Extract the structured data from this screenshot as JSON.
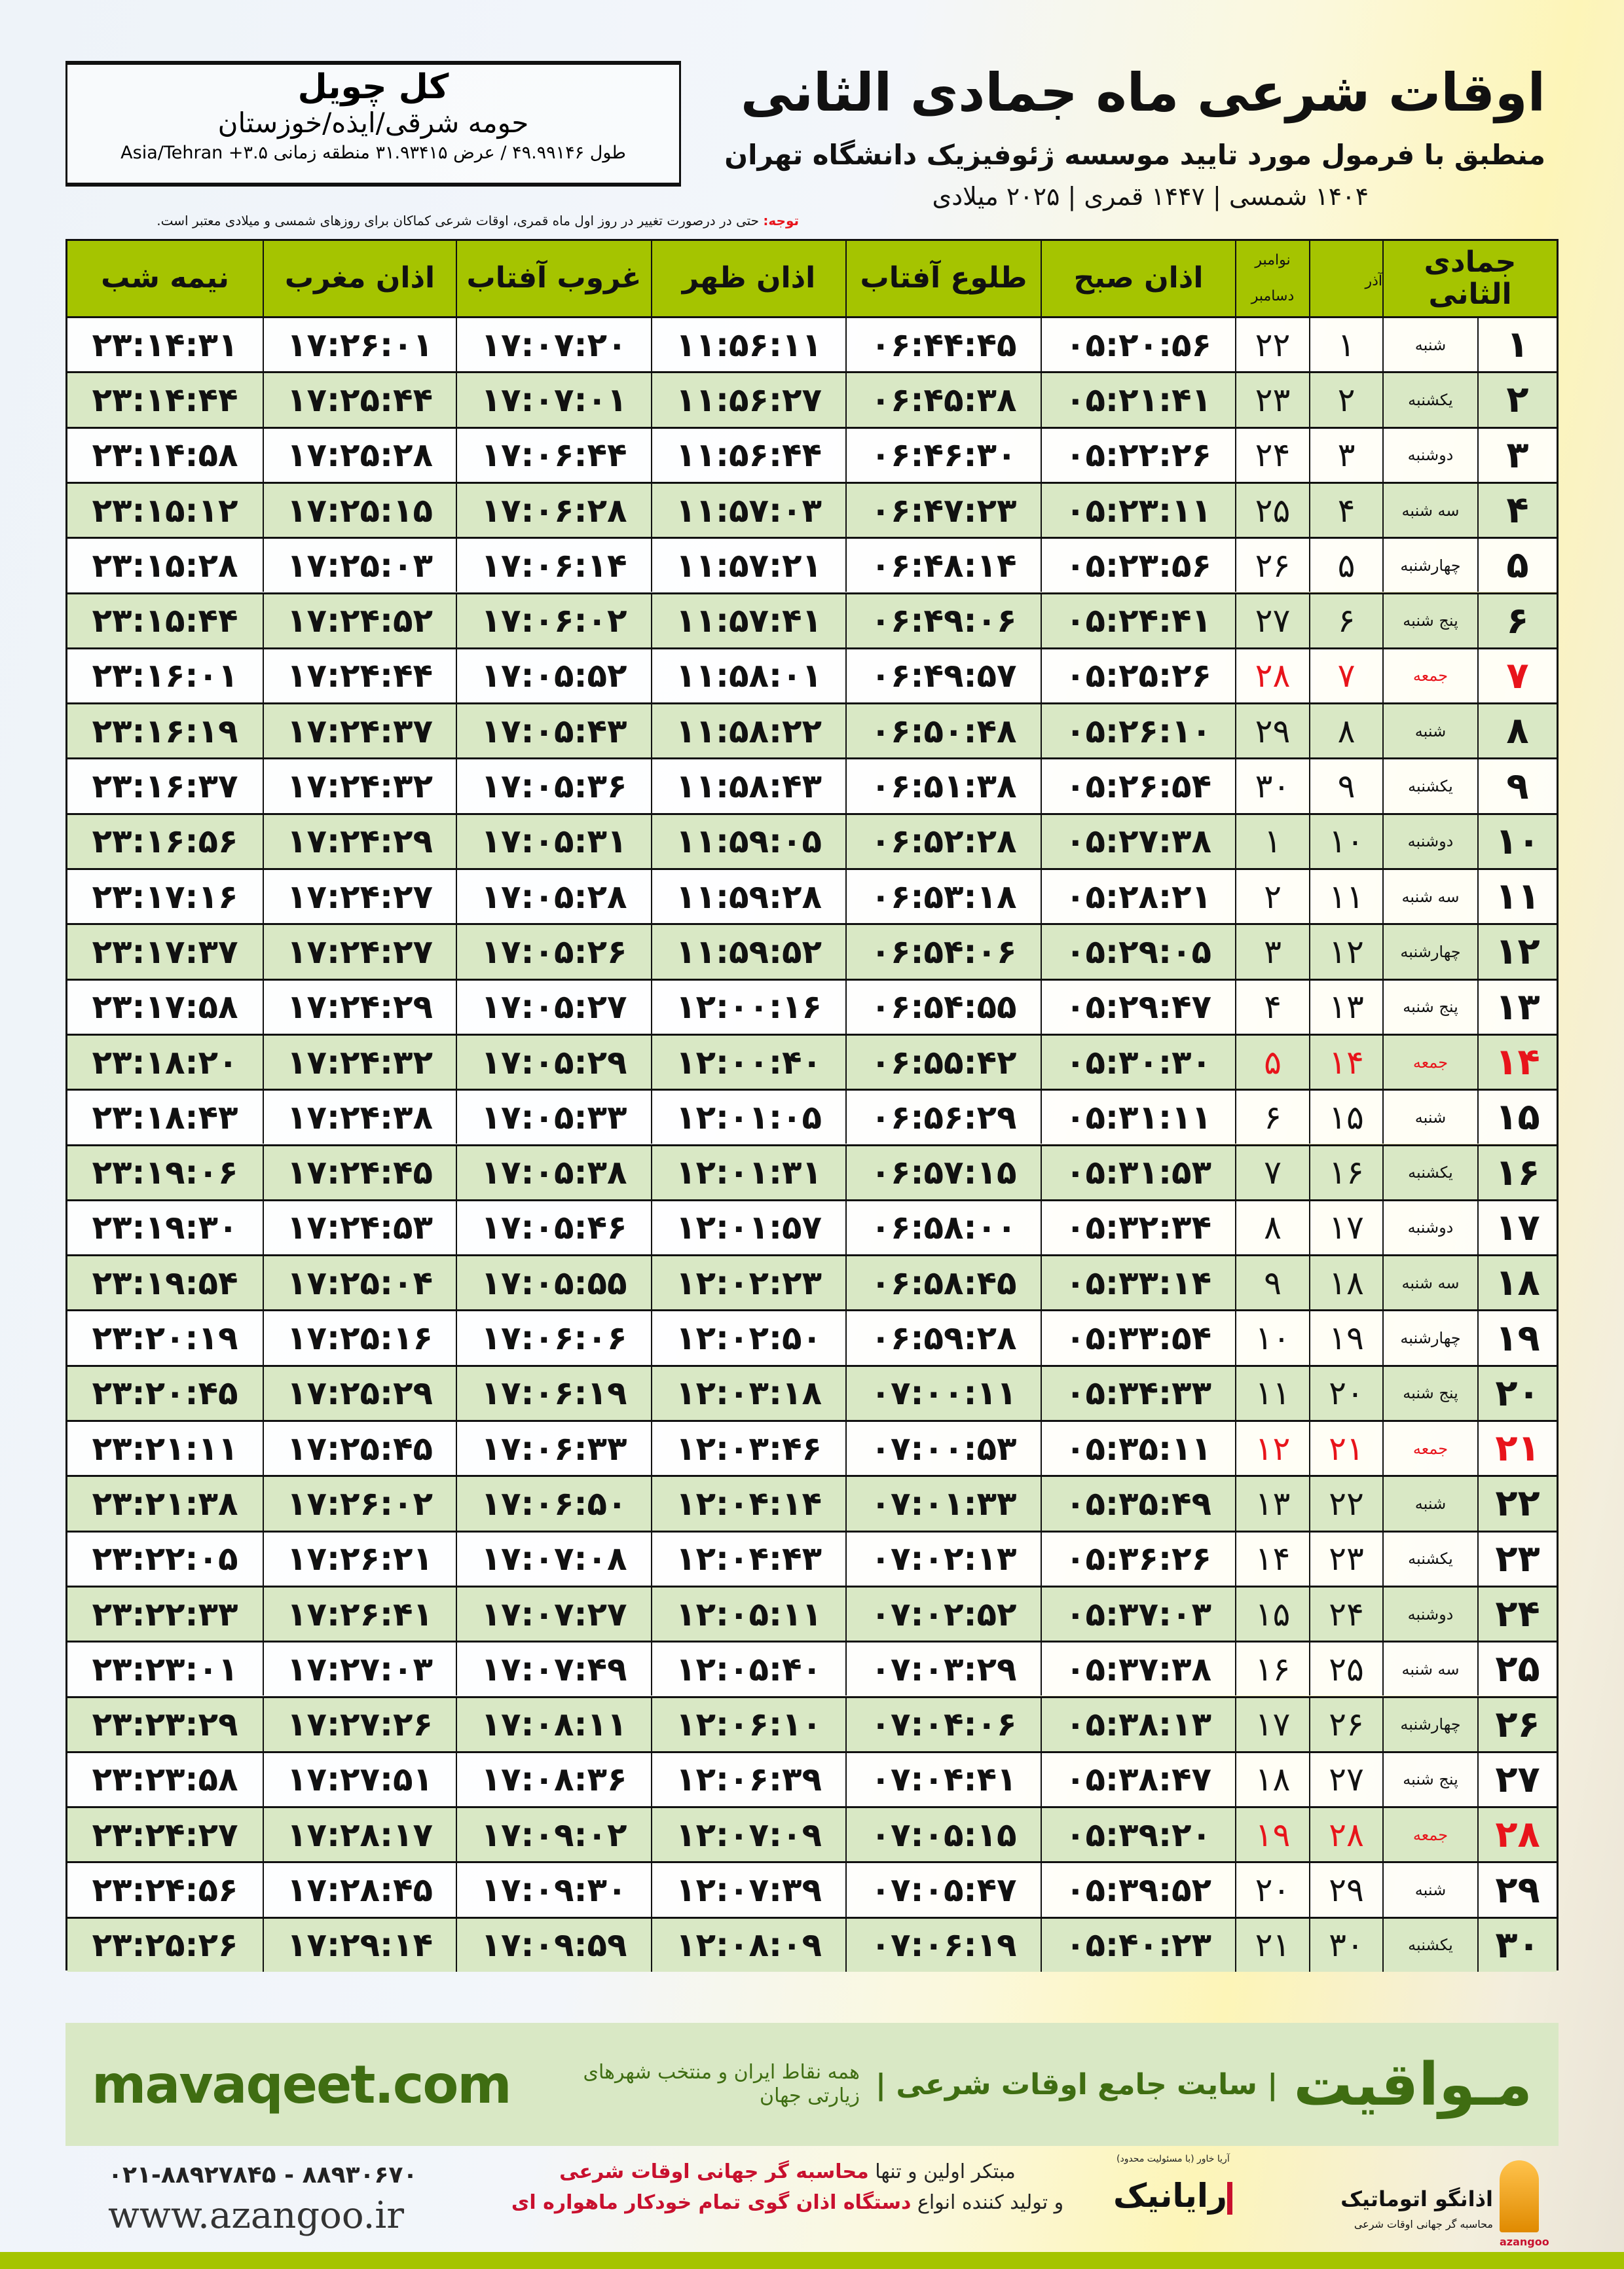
{
  "header": {
    "title": "اوقات شرعی ماه جمادی الثانی",
    "subtitle": "منطبق با فرمول مورد تایید موسسه ژئوفیزیک دانشگاه تهران",
    "dateline": "۱۴۰۴ شمسی | ۱۴۴۷ قمری | ۲۰۲۵ میلادی"
  },
  "location": {
    "name": "کل چویل",
    "region": "حومه شرقی/ایذه/خوزستان",
    "coords": "طول ۴۹.۹۹۱۴۶ / عرض ۳۱.۹۳۴۱۵ منطقه زمانی ۳.۵+ Asia/Tehran"
  },
  "note": {
    "label": "توجه:",
    "text": " حتی در درصورت تغییر در روز اول ماه قمری، اوقات شرعی کماکان برای روزهای شمسی و میلادی معتبر است."
  },
  "colors": {
    "header_green": "#a5c400",
    "row_green": "#d9e8c5",
    "friday_red": "#e8141b",
    "brand_green": "#3f6d12"
  },
  "table": {
    "headers": {
      "hijri": "جمادی الثانی",
      "azar": "آذر",
      "greg_top": "نوامبر",
      "greg_bottom": "دسامبر",
      "fajr": "اذان صبح",
      "sunrise": "طلوع آفتاب",
      "dhuhr": "اذان ظهر",
      "sunset": "غروب آفتاب",
      "maghrib": "اذان مغرب",
      "midnight": "نیمه شب"
    },
    "friday_label": "جمعه",
    "rows": [
      [
        "۱",
        "شنبه",
        "۱",
        "۲۲",
        "۰۵:۲۰:۵۶",
        "۰۶:۴۴:۴۵",
        "۱۱:۵۶:۱۱",
        "۱۷:۰۷:۲۰",
        "۱۷:۲۶:۰۱",
        "۲۳:۱۴:۳۱"
      ],
      [
        "۲",
        "یکشنبه",
        "۲",
        "۲۳",
        "۰۵:۲۱:۴۱",
        "۰۶:۴۵:۳۸",
        "۱۱:۵۶:۲۷",
        "۱۷:۰۷:۰۱",
        "۱۷:۲۵:۴۴",
        "۲۳:۱۴:۴۴"
      ],
      [
        "۳",
        "دوشنبه",
        "۳",
        "۲۴",
        "۰۵:۲۲:۲۶",
        "۰۶:۴۶:۳۰",
        "۱۱:۵۶:۴۴",
        "۱۷:۰۶:۴۴",
        "۱۷:۲۵:۲۸",
        "۲۳:۱۴:۵۸"
      ],
      [
        "۴",
        "سه شنبه",
        "۴",
        "۲۵",
        "۰۵:۲۳:۱۱",
        "۰۶:۴۷:۲۳",
        "۱۱:۵۷:۰۳",
        "۱۷:۰۶:۲۸",
        "۱۷:۲۵:۱۵",
        "۲۳:۱۵:۱۲"
      ],
      [
        "۵",
        "چهارشنبه",
        "۵",
        "۲۶",
        "۰۵:۲۳:۵۶",
        "۰۶:۴۸:۱۴",
        "۱۱:۵۷:۲۱",
        "۱۷:۰۶:۱۴",
        "۱۷:۲۵:۰۳",
        "۲۳:۱۵:۲۸"
      ],
      [
        "۶",
        "پنج شنبه",
        "۶",
        "۲۷",
        "۰۵:۲۴:۴۱",
        "۰۶:۴۹:۰۶",
        "۱۱:۵۷:۴۱",
        "۱۷:۰۶:۰۲",
        "۱۷:۲۴:۵۲",
        "۲۳:۱۵:۴۴"
      ],
      [
        "۷",
        "جمعه",
        "۷",
        "۲۸",
        "۰۵:۲۵:۲۶",
        "۰۶:۴۹:۵۷",
        "۱۱:۵۸:۰۱",
        "۱۷:۰۵:۵۲",
        "۱۷:۲۴:۴۴",
        "۲۳:۱۶:۰۱"
      ],
      [
        "۸",
        "شنبه",
        "۸",
        "۲۹",
        "۰۵:۲۶:۱۰",
        "۰۶:۵۰:۴۸",
        "۱۱:۵۸:۲۲",
        "۱۷:۰۵:۴۳",
        "۱۷:۲۴:۳۷",
        "۲۳:۱۶:۱۹"
      ],
      [
        "۹",
        "یکشنبه",
        "۹",
        "۳۰",
        "۰۵:۲۶:۵۴",
        "۰۶:۵۱:۳۸",
        "۱۱:۵۸:۴۳",
        "۱۷:۰۵:۳۶",
        "۱۷:۲۴:۳۲",
        "۲۳:۱۶:۳۷"
      ],
      [
        "۱۰",
        "دوشنبه",
        "۱۰",
        "۱",
        "۰۵:۲۷:۳۸",
        "۰۶:۵۲:۲۸",
        "۱۱:۵۹:۰۵",
        "۱۷:۰۵:۳۱",
        "۱۷:۲۴:۲۹",
        "۲۳:۱۶:۵۶"
      ],
      [
        "۱۱",
        "سه شنبه",
        "۱۱",
        "۲",
        "۰۵:۲۸:۲۱",
        "۰۶:۵۳:۱۸",
        "۱۱:۵۹:۲۸",
        "۱۷:۰۵:۲۸",
        "۱۷:۲۴:۲۷",
        "۲۳:۱۷:۱۶"
      ],
      [
        "۱۲",
        "چهارشنبه",
        "۱۲",
        "۳",
        "۰۵:۲۹:۰۵",
        "۰۶:۵۴:۰۶",
        "۱۱:۵۹:۵۲",
        "۱۷:۰۵:۲۶",
        "۱۷:۲۴:۲۷",
        "۲۳:۱۷:۳۷"
      ],
      [
        "۱۳",
        "پنج شنبه",
        "۱۳",
        "۴",
        "۰۵:۲۹:۴۷",
        "۰۶:۵۴:۵۵",
        "۱۲:۰۰:۱۶",
        "۱۷:۰۵:۲۷",
        "۱۷:۲۴:۲۹",
        "۲۳:۱۷:۵۸"
      ],
      [
        "۱۴",
        "جمعه",
        "۱۴",
        "۵",
        "۰۵:۳۰:۳۰",
        "۰۶:۵۵:۴۲",
        "۱۲:۰۰:۴۰",
        "۱۷:۰۵:۲۹",
        "۱۷:۲۴:۳۲",
        "۲۳:۱۸:۲۰"
      ],
      [
        "۱۵",
        "شنبه",
        "۱۵",
        "۶",
        "۰۵:۳۱:۱۱",
        "۰۶:۵۶:۲۹",
        "۱۲:۰۱:۰۵",
        "۱۷:۰۵:۳۳",
        "۱۷:۲۴:۳۸",
        "۲۳:۱۸:۴۳"
      ],
      [
        "۱۶",
        "یکشنبه",
        "۱۶",
        "۷",
        "۰۵:۳۱:۵۳",
        "۰۶:۵۷:۱۵",
        "۱۲:۰۱:۳۱",
        "۱۷:۰۵:۳۸",
        "۱۷:۲۴:۴۵",
        "۲۳:۱۹:۰۶"
      ],
      [
        "۱۷",
        "دوشنبه",
        "۱۷",
        "۸",
        "۰۵:۳۲:۳۴",
        "۰۶:۵۸:۰۰",
        "۱۲:۰۱:۵۷",
        "۱۷:۰۵:۴۶",
        "۱۷:۲۴:۵۳",
        "۲۳:۱۹:۳۰"
      ],
      [
        "۱۸",
        "سه شنبه",
        "۱۸",
        "۹",
        "۰۵:۳۳:۱۴",
        "۰۶:۵۸:۴۵",
        "۱۲:۰۲:۲۳",
        "۱۷:۰۵:۵۵",
        "۱۷:۲۵:۰۴",
        "۲۳:۱۹:۵۴"
      ],
      [
        "۱۹",
        "چهارشنبه",
        "۱۹",
        "۱۰",
        "۰۵:۳۳:۵۴",
        "۰۶:۵۹:۲۸",
        "۱۲:۰۲:۵۰",
        "۱۷:۰۶:۰۶",
        "۱۷:۲۵:۱۶",
        "۲۳:۲۰:۱۹"
      ],
      [
        "۲۰",
        "پنج شنبه",
        "۲۰",
        "۱۱",
        "۰۵:۳۴:۳۳",
        "۰۷:۰۰:۱۱",
        "۱۲:۰۳:۱۸",
        "۱۷:۰۶:۱۹",
        "۱۷:۲۵:۲۹",
        "۲۳:۲۰:۴۵"
      ],
      [
        "۲۱",
        "جمعه",
        "۲۱",
        "۱۲",
        "۰۵:۳۵:۱۱",
        "۰۷:۰۰:۵۳",
        "۱۲:۰۳:۴۶",
        "۱۷:۰۶:۳۳",
        "۱۷:۲۵:۴۵",
        "۲۳:۲۱:۱۱"
      ],
      [
        "۲۲",
        "شنبه",
        "۲۲",
        "۱۳",
        "۰۵:۳۵:۴۹",
        "۰۷:۰۱:۳۳",
        "۱۲:۰۴:۱۴",
        "۱۷:۰۶:۵۰",
        "۱۷:۲۶:۰۲",
        "۲۳:۲۱:۳۸"
      ],
      [
        "۲۳",
        "یکشنبه",
        "۲۳",
        "۱۴",
        "۰۵:۳۶:۲۶",
        "۰۷:۰۲:۱۳",
        "۱۲:۰۴:۴۳",
        "۱۷:۰۷:۰۸",
        "۱۷:۲۶:۲۱",
        "۲۳:۲۲:۰۵"
      ],
      [
        "۲۴",
        "دوشنبه",
        "۲۴",
        "۱۵",
        "۰۵:۳۷:۰۳",
        "۰۷:۰۲:۵۲",
        "۱۲:۰۵:۱۱",
        "۱۷:۰۷:۲۷",
        "۱۷:۲۶:۴۱",
        "۲۳:۲۲:۳۳"
      ],
      [
        "۲۵",
        "سه شنبه",
        "۲۵",
        "۱۶",
        "۰۵:۳۷:۳۸",
        "۰۷:۰۳:۲۹",
        "۱۲:۰۵:۴۰",
        "۱۷:۰۷:۴۹",
        "۱۷:۲۷:۰۳",
        "۲۳:۲۳:۰۱"
      ],
      [
        "۲۶",
        "چهارشنبه",
        "۲۶",
        "۱۷",
        "۰۵:۳۸:۱۳",
        "۰۷:۰۴:۰۶",
        "۱۲:۰۶:۱۰",
        "۱۷:۰۸:۱۱",
        "۱۷:۲۷:۲۶",
        "۲۳:۲۳:۲۹"
      ],
      [
        "۲۷",
        "پنج شنبه",
        "۲۷",
        "۱۸",
        "۰۵:۳۸:۴۷",
        "۰۷:۰۴:۴۱",
        "۱۲:۰۶:۳۹",
        "۱۷:۰۸:۳۶",
        "۱۷:۲۷:۵۱",
        "۲۳:۲۳:۵۸"
      ],
      [
        "۲۸",
        "جمعه",
        "۲۸",
        "۱۹",
        "۰۵:۳۹:۲۰",
        "۰۷:۰۵:۱۵",
        "۱۲:۰۷:۰۹",
        "۱۷:۰۹:۰۲",
        "۱۷:۲۸:۱۷",
        "۲۳:۲۴:۲۷"
      ],
      [
        "۲۹",
        "شنبه",
        "۲۹",
        "۲۰",
        "۰۵:۳۹:۵۲",
        "۰۷:۰۵:۴۷",
        "۱۲:۰۷:۳۹",
        "۱۷:۰۹:۳۰",
        "۱۷:۲۸:۴۵",
        "۲۳:۲۴:۵۶"
      ],
      [
        "۳۰",
        "یکشنبه",
        "۳۰",
        "۲۱",
        "۰۵:۴۰:۲۳",
        "۰۷:۰۶:۱۹",
        "۱۲:۰۸:۰۹",
        "۱۷:۰۹:۵۹",
        "۱۷:۲۹:۱۴",
        "۲۳:۲۵:۲۶"
      ]
    ]
  },
  "banner": {
    "brand": "مـواقیت",
    "slogan": "| سایت جامع اوقات شرعی |",
    "slogan_sub": "همه نقاط ایران و منتخب شهرهای زیارتی جهان",
    "site": "mavaqeet.com"
  },
  "footer": {
    "phones": "۰۲۱-۸۸۹۲۷۸۴۵ - ۸۸۹۳۰۶۷۰",
    "web": "www.azangoo.ir",
    "line1_a": "مبتکر اولین و تنها ",
    "line1_b": "محاسبه گر جهانی اوقات شرعی",
    "line2_a": "و تولید کننده انواع ",
    "line2_b": "دستگاه اذان گوی تمام خودکار ماهواره ای",
    "logo1": "رایانیک",
    "logo1_sub": "آریا خاور (با مسئولیت محدود)",
    "logo2": "اذانگو اتوماتیک",
    "logo2_sub": "محاسبه گر جهانی اوقات شرعی",
    "logo2_en": "azangoo"
  }
}
